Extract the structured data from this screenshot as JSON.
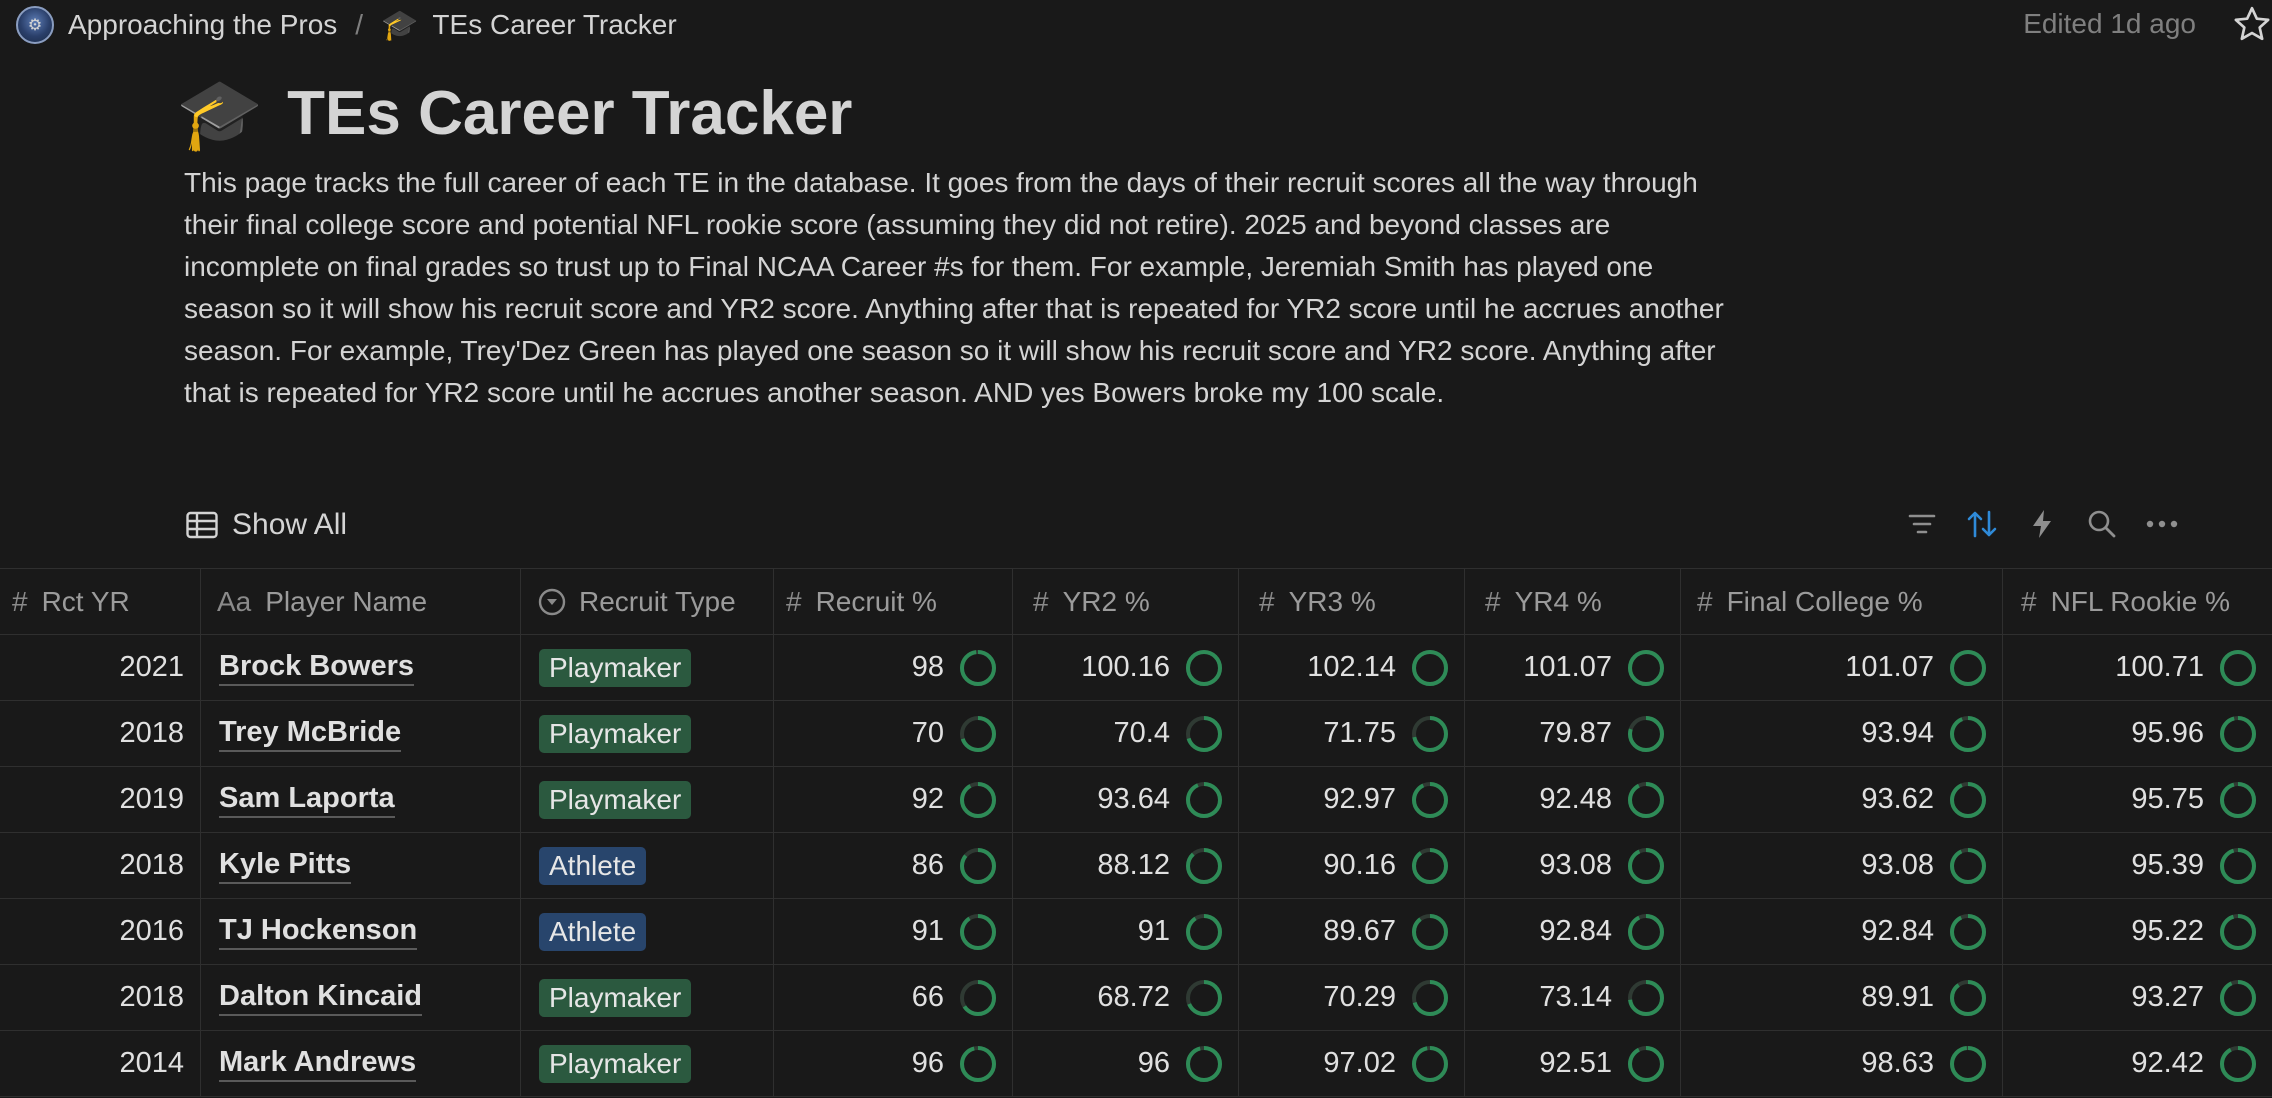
{
  "breadcrumb": {
    "workspace": "Approaching the Pros",
    "separator": "/",
    "page": "TEs Career Tracker",
    "edited": "Edited 1d ago"
  },
  "page": {
    "title": "TEs Career Tracker",
    "description": "This page tracks the full career of each TE in the database. It goes from the days of their recruit scores all the way through their final college score and potential NFL rookie score (assuming they did not retire). 2025 and beyond classes are incomplete on final grades so trust up to Final NCAA Career #s for them. For example, Jeremiah Smith has played one season so it will show his recruit score and YR2 score. Anything after that is repeated for YR2 score until he accrues another season. For example, Trey'Dez Green has played one season so it will show his recruit score and YR2 score. Anything after that is repeated for YR2 score until he accrues another season. AND yes Bowers broke my 100 scale."
  },
  "view": {
    "label": "Show All"
  },
  "columns": [
    "Rct YR",
    "Player Name",
    "Recruit Type",
    "Recruit %",
    "YR2 %",
    "YR3 %",
    "YR4 %",
    "Final College %",
    "NFL Rookie %"
  ],
  "column_icons": [
    "#",
    "Aa",
    "select-icon",
    "#",
    "#",
    "#",
    "#",
    "#",
    "#"
  ],
  "tag_colors": {
    "Playmaker": "#2b593f",
    "Athlete": "#28456c"
  },
  "ring_color": "#2e8b57",
  "ring_track": "#2f3a33",
  "rows": [
    {
      "rct_yr": "2021",
      "name": "Brock Bowers",
      "type": "Playmaker",
      "scores": [
        "98",
        "100.16",
        "102.14",
        "101.07",
        "101.07",
        "100.71"
      ]
    },
    {
      "rct_yr": "2018",
      "name": "Trey McBride",
      "type": "Playmaker",
      "scores": [
        "70",
        "70.4",
        "71.75",
        "79.87",
        "93.94",
        "95.96"
      ]
    },
    {
      "rct_yr": "2019",
      "name": "Sam Laporta",
      "type": "Playmaker",
      "scores": [
        "92",
        "93.64",
        "92.97",
        "92.48",
        "93.62",
        "95.75"
      ]
    },
    {
      "rct_yr": "2018",
      "name": "Kyle Pitts",
      "type": "Athlete",
      "scores": [
        "86",
        "88.12",
        "90.16",
        "93.08",
        "93.08",
        "95.39"
      ]
    },
    {
      "rct_yr": "2016",
      "name": "TJ Hockenson",
      "type": "Athlete",
      "scores": [
        "91",
        "91",
        "89.67",
        "92.84",
        "92.84",
        "95.22"
      ]
    },
    {
      "rct_yr": "2018",
      "name": "Dalton Kincaid",
      "type": "Playmaker",
      "scores": [
        "66",
        "68.72",
        "70.29",
        "73.14",
        "89.91",
        "93.27"
      ]
    },
    {
      "rct_yr": "2014",
      "name": "Mark Andrews",
      "type": "Playmaker",
      "scores": [
        "96",
        "96",
        "97.02",
        "92.51",
        "98.63",
        "92.42"
      ]
    }
  ]
}
